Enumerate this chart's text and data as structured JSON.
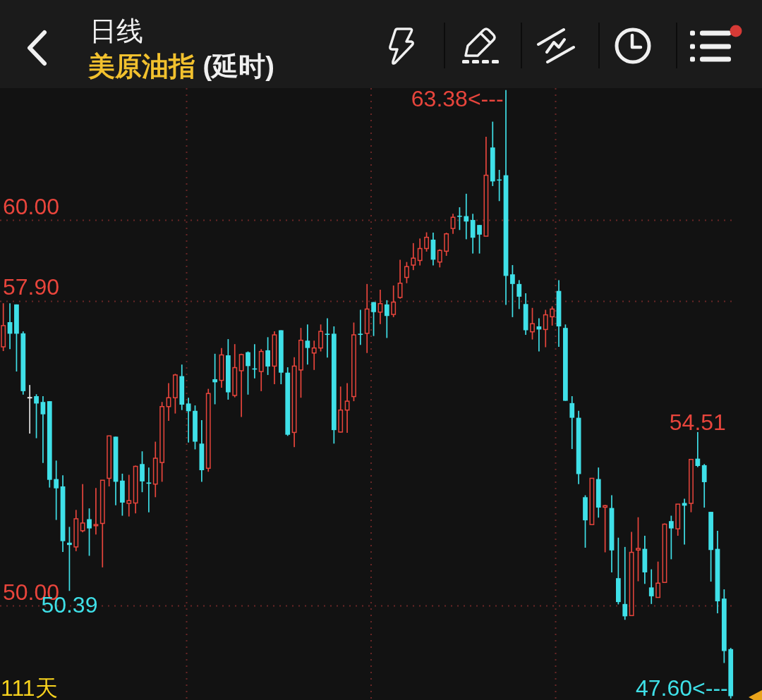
{
  "chart_data": {
    "type": "candlestick",
    "title": "日线",
    "subtitle": "美原油指 (延时)",
    "categories": [
      null,
      null,
      null,
      null,
      null,
      null,
      null,
      null,
      null,
      null,
      null,
      null,
      null,
      null,
      null,
      null,
      null,
      null,
      null,
      null,
      null,
      null,
      null,
      null,
      null,
      null,
      null,
      null,
      null,
      null,
      null,
      null,
      null,
      null,
      null,
      null,
      null,
      null,
      null,
      null,
      null,
      null,
      null,
      null,
      null,
      null,
      null,
      null,
      null,
      null,
      null,
      null,
      null,
      null,
      null,
      null,
      null,
      null,
      null,
      null,
      null,
      null,
      null,
      null,
      null,
      null,
      null,
      null,
      null,
      null,
      null,
      null,
      null,
      null,
      null,
      null,
      null,
      null,
      null,
      null,
      null,
      null,
      null,
      null,
      null,
      null,
      null,
      null,
      null,
      null,
      null,
      null,
      null,
      null,
      null,
      null,
      null,
      null,
      null,
      null,
      null,
      null,
      null,
      null,
      null,
      null,
      null,
      null,
      null,
      null,
      null
    ],
    "ohlc": [
      [
        56.72,
        57.85,
        56.61,
        57.27
      ],
      [
        57.36,
        57.85,
        56.66,
        57.06
      ],
      [
        57.82,
        57.82,
        56.08,
        57.06
      ],
      [
        57.07,
        57.12,
        55.48,
        55.57
      ],
      [
        55.4,
        55.73,
        54.47,
        55.4
      ],
      [
        55.44,
        55.49,
        54.35,
        55.25
      ],
      [
        55.29,
        55.44,
        53.71,
        54.97
      ],
      [
        55.31,
        55.31,
        53.07,
        53.27
      ],
      [
        53.29,
        53.77,
        52.23,
        53.05
      ],
      [
        53.1,
        53.39,
        51.4,
        51.68
      ],
      [
        51.64,
        52.05,
        50.39,
        51.58
      ],
      [
        51.53,
        52.49,
        51.42,
        52.26
      ],
      [
        51.95,
        53.16,
        51.91,
        52.15
      ],
      [
        52.25,
        52.53,
        51.3,
        52.01
      ],
      [
        52.08,
        53.06,
        51.85,
        52.11
      ],
      [
        52.14,
        53.26,
        51.0,
        53.26
      ],
      [
        53.31,
        54.41,
        53.1,
        54.41
      ],
      [
        54.39,
        54.39,
        52.61,
        53.22
      ],
      [
        53.25,
        53.43,
        52.34,
        52.68
      ],
      [
        52.66,
        53.4,
        52.32,
        52.73
      ],
      [
        52.67,
        53.64,
        52.4,
        53.62
      ],
      [
        53.68,
        54.01,
        52.95,
        53.23
      ],
      [
        53.2,
        53.59,
        52.43,
        53.17
      ],
      [
        53.16,
        54.26,
        52.82,
        53.83
      ],
      [
        53.72,
        55.29,
        53.22,
        55.17
      ],
      [
        55.17,
        55.78,
        54.8,
        55.4
      ],
      [
        55.4,
        56.02,
        54.99,
        55.99
      ],
      [
        55.96,
        56.26,
        55.08,
        55.22
      ],
      [
        55.25,
        55.4,
        54.24,
        55.05
      ],
      [
        55.06,
        55.2,
        54.06,
        54.26
      ],
      [
        54.21,
        54.82,
        53.22,
        53.52
      ],
      [
        53.57,
        55.63,
        53.48,
        55.51
      ],
      [
        55.88,
        56.54,
        55.23,
        55.8
      ],
      [
        55.85,
        56.69,
        55.66,
        56.51
      ],
      [
        56.5,
        56.92,
        55.35,
        55.54
      ],
      [
        55.46,
        56.79,
        55.41,
        56.18
      ],
      [
        56.1,
        56.54,
        54.9,
        56.52
      ],
      [
        56.58,
        56.6,
        55.48,
        56.22
      ],
      [
        56.16,
        56.79,
        55.9,
        56.13
      ],
      [
        56.08,
        56.66,
        55.57,
        56.6
      ],
      [
        56.63,
        56.97,
        55.99,
        56.21
      ],
      [
        56.22,
        57.12,
        55.75,
        57.03
      ],
      [
        57.15,
        57.15,
        55.75,
        56.05
      ],
      [
        56.05,
        56.19,
        54.41,
        54.44
      ],
      [
        54.5,
        56.45,
        54.12,
        56.22
      ],
      [
        56.12,
        57.21,
        55.4,
        56.89
      ],
      [
        56.88,
        57.3,
        56.26,
        56.69
      ],
      [
        56.56,
        56.88,
        56.12,
        56.69
      ],
      [
        56.69,
        57.3,
        56.6,
        57.12
      ],
      [
        57.06,
        57.46,
        56.44,
        57.03
      ],
      [
        57.06,
        57.25,
        54.21,
        54.56
      ],
      [
        54.51,
        55.69,
        54.5,
        55.08
      ],
      [
        55.08,
        55.78,
        54.49,
        55.31
      ],
      [
        55.43,
        57.35,
        55.31,
        57.03
      ],
      [
        57.06,
        57.68,
        56.77,
        57.03
      ],
      [
        57.07,
        58.35,
        56.56,
        57.7
      ],
      [
        57.88,
        57.88,
        57.0,
        57.62
      ],
      [
        57.62,
        58.2,
        57.31,
        57.84
      ],
      [
        57.82,
        57.93,
        56.95,
        57.52
      ],
      [
        57.56,
        58.31,
        57.49,
        57.88
      ],
      [
        58.0,
        58.98,
        57.97,
        58.37
      ],
      [
        58.52,
        58.92,
        58.37,
        58.8
      ],
      [
        58.84,
        59.41,
        58.71,
        59.02
      ],
      [
        58.96,
        59.53,
        58.83,
        59.27
      ],
      [
        59.27,
        59.69,
        59.19,
        59.56
      ],
      [
        59.5,
        59.68,
        58.83,
        58.98
      ],
      [
        58.92,
        59.25,
        58.78,
        59.22
      ],
      [
        59.2,
        59.68,
        59.08,
        59.65
      ],
      [
        59.79,
        60.17,
        59.65,
        60.08
      ],
      [
        60.12,
        60.34,
        59.75,
        60.1
      ],
      [
        60.11,
        60.69,
        59.51,
        59.97
      ],
      [
        60.01,
        60.17,
        59.14,
        59.55
      ],
      [
        59.88,
        59.88,
        59.14,
        59.63
      ],
      [
        59.59,
        62.17,
        59.59,
        61.17
      ],
      [
        61.89,
        62.56,
        60.89,
        61.01
      ],
      [
        61.06,
        61.31,
        60.5,
        61.04
      ],
      [
        61.17,
        63.38,
        57.81,
        58.56
      ],
      [
        58.6,
        58.84,
        57.49,
        58.35
      ],
      [
        58.35,
        58.45,
        57.7,
        58.02
      ],
      [
        57.83,
        58.11,
        57.03,
        57.15
      ],
      [
        57.11,
        57.73,
        56.91,
        57.32
      ],
      [
        57.25,
        57.46,
        56.6,
        57.17
      ],
      [
        57.17,
        57.68,
        56.71,
        57.55
      ],
      [
        57.5,
        57.77,
        57.27,
        57.7
      ],
      [
        58.17,
        58.45,
        56.72,
        57.25
      ],
      [
        57.21,
        57.3,
        55.32,
        55.32
      ],
      [
        55.26,
        55.44,
        54.07,
        54.88
      ],
      [
        54.88,
        55.06,
        53.16,
        53.42
      ],
      [
        52.82,
        52.87,
        51.51,
        52.22
      ],
      [
        52.11,
        53.31,
        52.11,
        53.31
      ],
      [
        53.29,
        53.59,
        52.29,
        52.55
      ],
      [
        52.56,
        52.62,
        51.39,
        52.6
      ],
      [
        52.54,
        52.87,
        50.87,
        51.44
      ],
      [
        50.72,
        51.77,
        50.04,
        50.1
      ],
      [
        50.05,
        51.53,
        49.64,
        49.73
      ],
      [
        49.75,
        51.92,
        49.75,
        51.39
      ],
      [
        51.45,
        52.3,
        50.64,
        51.49
      ],
      [
        51.48,
        51.82,
        50.57,
        50.87
      ],
      [
        50.48,
        50.95,
        50.05,
        50.25
      ],
      [
        50.22,
        51.15,
        50.22,
        50.59
      ],
      [
        50.61,
        52.14,
        50.61,
        52.12
      ],
      [
        52.2,
        52.34,
        51.21,
        52.01
      ],
      [
        52.0,
        52.64,
        51.82,
        52.64
      ],
      [
        52.67,
        52.78,
        51.59,
        52.6
      ],
      [
        52.66,
        53.8,
        52.43,
        53.8
      ],
      [
        53.82,
        54.51,
        53.6,
        53.63
      ],
      [
        53.65,
        53.68,
        52.55,
        53.21
      ],
      [
        52.44,
        52.44,
        50.63,
        51.45
      ],
      [
        51.48,
        51.95,
        49.81,
        50.12
      ],
      [
        50.19,
        50.43,
        48.52,
        48.83
      ],
      [
        48.88,
        48.91,
        47.6,
        47.66
      ]
    ],
    "colors": [
      "#e8453c",
      "#3fe0e8",
      "#3fe0e8",
      "#3fe0e8",
      "#e6e6e6",
      "#3fe0e8",
      "#3fe0e8",
      "#3fe0e8",
      "#3fe0e8",
      "#3fe0e8",
      "#3fe0e8",
      "#e8453c",
      "#e8453c",
      "#3fe0e8",
      "#e8453c",
      "#e8453c",
      "#e8453c",
      "#3fe0e8",
      "#3fe0e8",
      "#e8453c",
      "#e8453c",
      "#3fe0e8",
      "#3fe0e8",
      "#e8453c",
      "#e8453c",
      "#e8453c",
      "#e8453c",
      "#3fe0e8",
      "#3fe0e8",
      "#3fe0e8",
      "#3fe0e8",
      "#e8453c",
      "#3fe0e8",
      "#e8453c",
      "#3fe0e8",
      "#e8453c",
      "#e8453c",
      "#3fe0e8",
      "#3fe0e8",
      "#e8453c",
      "#3fe0e8",
      "#e8453c",
      "#3fe0e8",
      "#3fe0e8",
      "#e8453c",
      "#e8453c",
      "#3fe0e8",
      "#e8453c",
      "#e8453c",
      "#3fe0e8",
      "#3fe0e8",
      "#e8453c",
      "#e8453c",
      "#e8453c",
      "#3fe0e8",
      "#e8453c",
      "#3fe0e8",
      "#e8453c",
      "#3fe0e8",
      "#e8453c",
      "#e8453c",
      "#e8453c",
      "#e8453c",
      "#e8453c",
      "#e8453c",
      "#3fe0e8",
      "#e8453c",
      "#e8453c",
      "#e8453c",
      "#3fe0e8",
      "#3fe0e8",
      "#3fe0e8",
      "#3fe0e8",
      "#e8453c",
      "#3fe0e8",
      "#3fe0e8",
      "#3fe0e8",
      "#3fe0e8",
      "#3fe0e8",
      "#3fe0e8",
      "#e8453c",
      "#3fe0e8",
      "#e8453c",
      "#e8453c",
      "#3fe0e8",
      "#3fe0e8",
      "#3fe0e8",
      "#3fe0e8",
      "#3fe0e8",
      "#e8453c",
      "#3fe0e8",
      "#e8453c",
      "#3fe0e8",
      "#3fe0e8",
      "#3fe0e8",
      "#e8453c",
      "#e8453c",
      "#3fe0e8",
      "#3fe0e8",
      "#e8453c",
      "#e8453c",
      "#3fe0e8",
      "#e8453c",
      "#3fe0e8",
      "#e8453c",
      "#3fe0e8",
      "#3fe0e8",
      "#3fe0e8",
      "#3fe0e8",
      "#3fe0e8",
      "#3fe0e8"
    ],
    "value_labels": [
      null,
      null,
      null,
      null,
      null,
      null,
      null,
      null,
      null,
      null,
      "50.39",
      null,
      null,
      null,
      null,
      null,
      null,
      null,
      null,
      null,
      null,
      null,
      null,
      null,
      null,
      null,
      null,
      null,
      null,
      null,
      null,
      null,
      null,
      null,
      null,
      null,
      null,
      null,
      null,
      null,
      null,
      null,
      null,
      null,
      null,
      null,
      null,
      null,
      null,
      null,
      null,
      null,
      null,
      null,
      null,
      null,
      null,
      null,
      null,
      null,
      null,
      null,
      null,
      null,
      null,
      null,
      null,
      null,
      null,
      null,
      null,
      null,
      null,
      null,
      null,
      null,
      "63.38<---",
      null,
      null,
      null,
      null,
      null,
      null,
      null,
      null,
      null,
      null,
      null,
      null,
      null,
      null,
      null,
      null,
      null,
      null,
      null,
      null,
      null,
      null,
      null,
      null,
      null,
      null,
      null,
      null,
      "54.51",
      null,
      null,
      null,
      null,
      "47.60<---"
    ],
    "ylim": [
      47.56,
      63.43
    ],
    "yticks": [
      {
        "value": 60,
        "label": "60.00"
      },
      {
        "value": 57.9,
        "label": "57.90"
      },
      {
        "value": 50,
        "label": "50.00"
      }
    ],
    "tick_labels": "y",
    "grid": true,
    "annotations": [
      "111天"
    ]
  }
}
